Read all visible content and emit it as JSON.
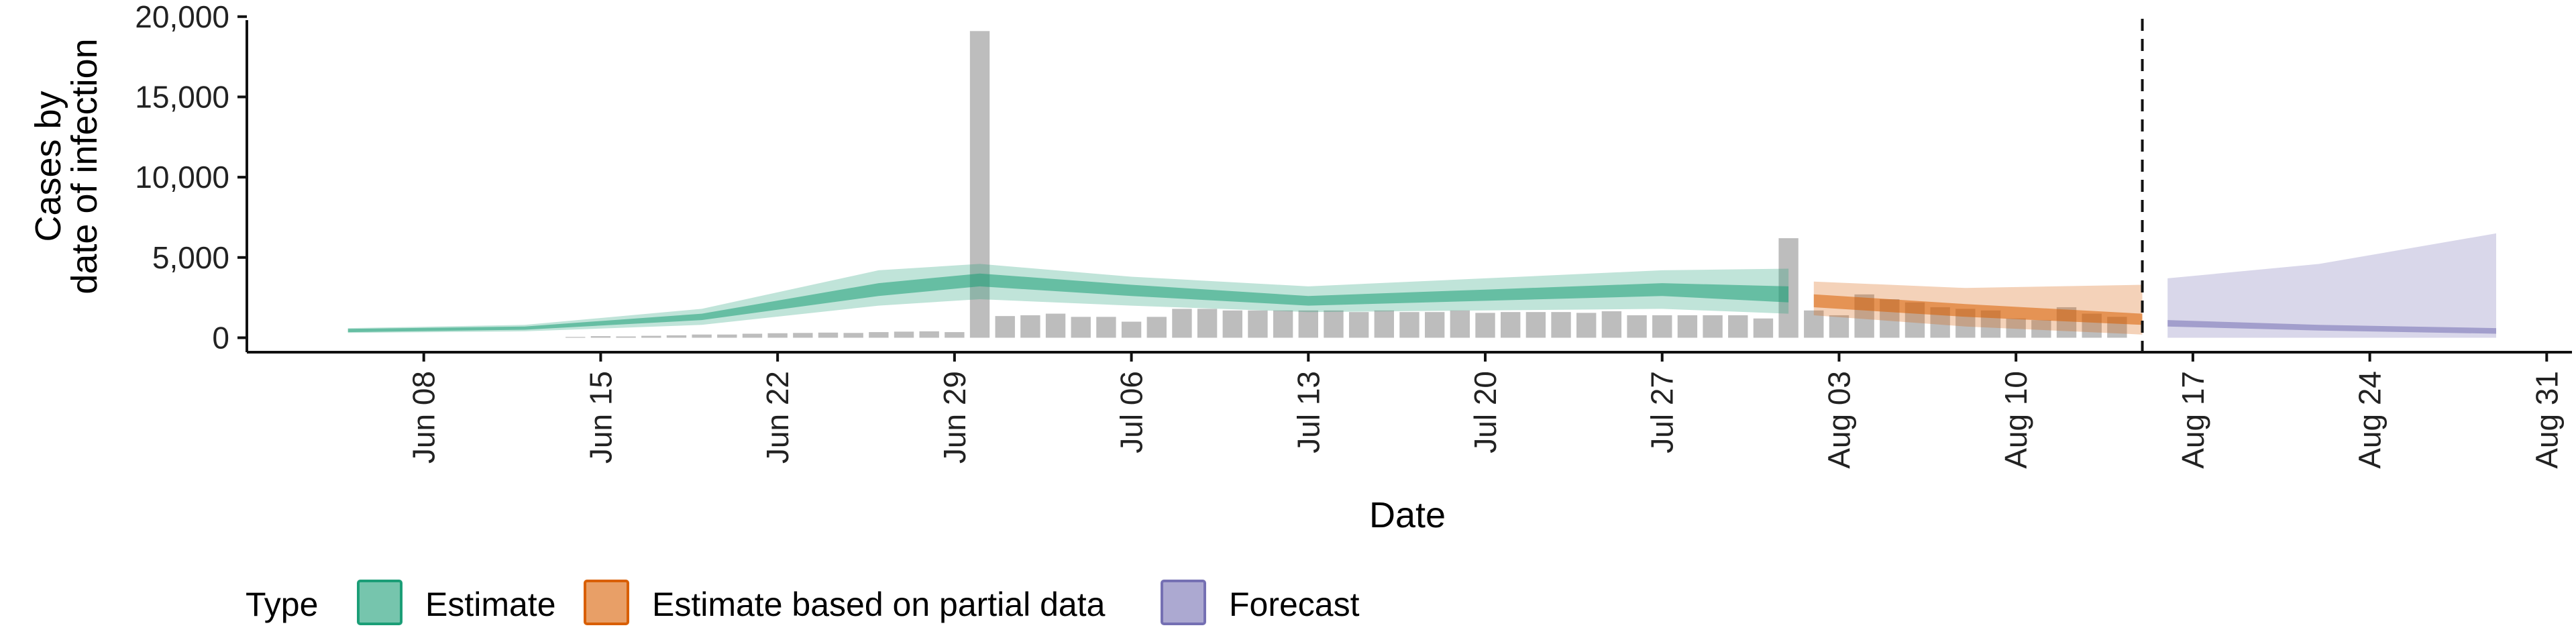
{
  "chart_data": {
    "type": "area",
    "xlabel": "Date",
    "ylabel_lines": [
      "Cases by",
      "date of infection"
    ],
    "yticks": [
      0,
      5000,
      10000,
      15000,
      20000
    ],
    "ytick_labels": [
      "0",
      "5,000",
      "10,000",
      "15,000",
      "20,000"
    ],
    "ylim": [
      -900,
      20200
    ],
    "xlim": [
      "2020-06-01",
      "2020-09-01"
    ],
    "xticks": [
      "2020-06-08",
      "2020-06-15",
      "2020-06-22",
      "2020-06-29",
      "2020-07-06",
      "2020-07-13",
      "2020-07-20",
      "2020-07-27",
      "2020-08-03",
      "2020-08-10",
      "2020-08-17",
      "2020-08-24",
      "2020-08-31"
    ],
    "xtick_labels": [
      "Jun 08",
      "Jun 15",
      "Jun 22",
      "Jun 29",
      "Jul 06",
      "Jul 13",
      "Jul 20",
      "Jul 27",
      "Aug 03",
      "Aug 10",
      "Aug 17",
      "Aug 24",
      "Aug 31"
    ],
    "forecast_start": "2020-08-15",
    "reported_cases": {
      "dates_start": "2020-06-07",
      "values": [
        0,
        0,
        0,
        0,
        0,
        0,
        0,
        50,
        100,
        80,
        120,
        150,
        200,
        200,
        250,
        280,
        300,
        320,
        300,
        350,
        380,
        400,
        350,
        19100,
        1350,
        1400,
        1500,
        1300,
        1300,
        1000,
        1300,
        1800,
        1800,
        1700,
        1700,
        1700,
        1700,
        1700,
        1600,
        1700,
        1600,
        1600,
        1700,
        1550,
        1600,
        1600,
        1600,
        1550,
        1650,
        1400,
        1400,
        1400,
        1400,
        1400,
        1200,
        6200,
        1700,
        1400,
        2700,
        2400,
        2200,
        1900,
        1800,
        1700,
        1200,
        1100,
        1900,
        1500,
        1300
      ]
    },
    "series": [
      {
        "name": "Estimate",
        "dates": [
          "2020-06-05",
          "2020-06-12",
          "2020-06-19",
          "2020-06-26",
          "2020-06-30",
          "2020-07-06",
          "2020-07-13",
          "2020-07-20",
          "2020-07-27",
          "2020-08-01"
        ],
        "median": [
          450,
          600,
          1300,
          3000,
          3700,
          3000,
          2300,
          2600,
          3000,
          2700
        ],
        "lower50": [
          350,
          500,
          1100,
          2600,
          3200,
          2600,
          2000,
          2300,
          2600,
          2200
        ],
        "upper50": [
          550,
          700,
          1500,
          3400,
          4000,
          3300,
          2600,
          3000,
          3400,
          3200
        ],
        "lower90": [
          300,
          400,
          800,
          2000,
          2400,
          2000,
          1600,
          1700,
          1800,
          1500
        ],
        "upper90": [
          600,
          800,
          1800,
          4200,
          4600,
          3800,
          3200,
          3700,
          4200,
          4300
        ]
      },
      {
        "name": "Estimate based on partial data",
        "dates": [
          "2020-08-02",
          "2020-08-08",
          "2020-08-15"
        ],
        "median": [
          2300,
          1700,
          1100
        ],
        "lower50": [
          1900,
          1300,
          800
        ],
        "upper50": [
          2700,
          2100,
          1500
        ],
        "lower90": [
          1400,
          700,
          200
        ],
        "upper90": [
          3500,
          3100,
          3300
        ]
      },
      {
        "name": "Forecast",
        "dates": [
          "2020-08-16",
          "2020-08-22",
          "2020-08-29"
        ],
        "median": [
          900,
          600,
          400
        ],
        "lower50": [
          700,
          450,
          250
        ],
        "upper50": [
          1100,
          800,
          600
        ],
        "lower90": [
          0,
          0,
          0
        ],
        "upper90": [
          3700,
          4600,
          6500
        ]
      }
    ],
    "legend": {
      "title": "Type",
      "position": "bottom-left",
      "items": [
        "Estimate",
        "Estimate based on partial data",
        "Forecast"
      ]
    },
    "colors": {
      "Estimate": "#1b9e77",
      "Estimate based on partial data": "#d95f02",
      "Forecast": "#7570b3",
      "reported": "#bdbdbd"
    },
    "grid": false
  }
}
